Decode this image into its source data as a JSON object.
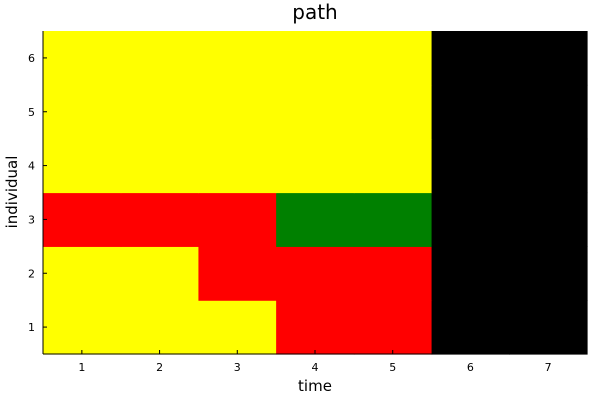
{
  "chart_data": {
    "type": "heatmap",
    "title": "path",
    "xlabel": "time",
    "ylabel": "individual",
    "x": [
      1,
      2,
      3,
      4,
      5,
      6,
      7
    ],
    "y": [
      1,
      2,
      3,
      4,
      5,
      6
    ],
    "xlim": [
      0.5,
      7.5
    ],
    "ylim": [
      0.5,
      6.5
    ],
    "grid": false,
    "legend": "none",
    "palette": {
      "Y": "#ffff00",
      "R": "#ff0000",
      "G": "#008000",
      "K": "#000000"
    },
    "rows": [
      [
        "Y",
        "Y",
        "Y",
        "R",
        "R",
        "K",
        "K"
      ],
      [
        "Y",
        "Y",
        "R",
        "R",
        "R",
        "K",
        "K"
      ],
      [
        "R",
        "R",
        "R",
        "G",
        "G",
        "K",
        "K"
      ],
      [
        "Y",
        "Y",
        "Y",
        "Y",
        "Y",
        "K",
        "K"
      ],
      [
        "Y",
        "Y",
        "Y",
        "Y",
        "Y",
        "K",
        "K"
      ],
      [
        "Y",
        "Y",
        "Y",
        "Y",
        "Y",
        "K",
        "K"
      ]
    ]
  }
}
